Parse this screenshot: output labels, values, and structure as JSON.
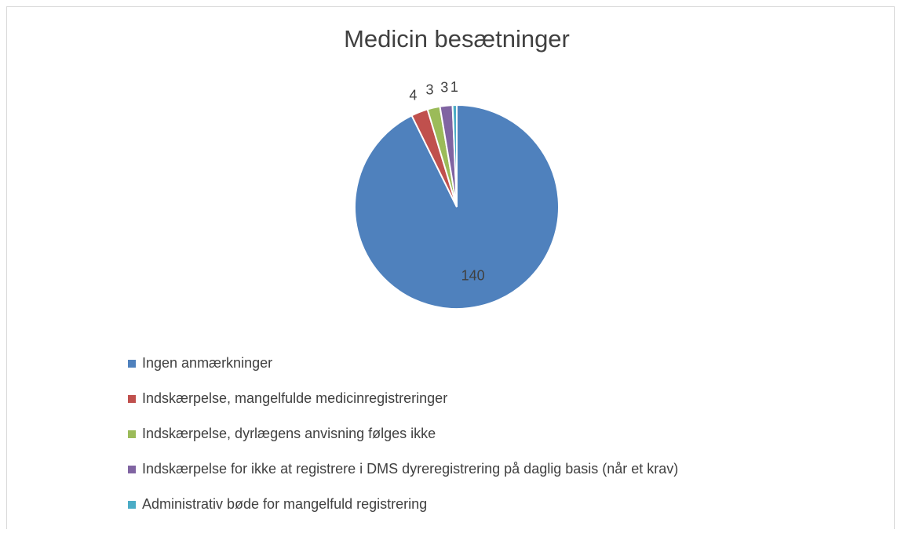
{
  "chart_data": {
    "type": "pie",
    "title": "Medicin besætninger",
    "categories": [
      "Ingen anmærkninger",
      "Indskærpelse, mangelfulde medicinregistreringer",
      "Indskærpelse, dyrlægens anvisning følges ikke",
      "Indskærpelse for ikke at registrere i DMS dyreregistrering på daglig basis (når et krav)",
      "Administrativ bøde for mangelfuld registrering"
    ],
    "values": [
      140,
      4,
      3,
      3,
      1
    ],
    "colors": [
      "#4f81bd",
      "#c0504d",
      "#9bbb59",
      "#8064a2",
      "#4bacc6"
    ],
    "legend": "bottom"
  }
}
